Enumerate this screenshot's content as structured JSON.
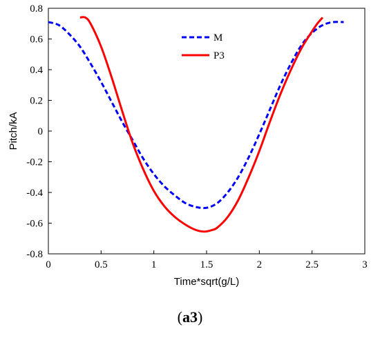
{
  "caption": {
    "open": "(",
    "label": "a3",
    "close": ")"
  },
  "chart_data": {
    "type": "line",
    "title": "",
    "xlabel": "Time*sqrt(g/L)",
    "ylabel": "Pitch/kA",
    "xlim": [
      0,
      3
    ],
    "ylim": [
      -0.8,
      0.8
    ],
    "xticks": [
      0,
      0.5,
      1,
      1.5,
      2,
      2.5,
      3
    ],
    "xtick_labels": [
      "0",
      "0.5",
      "1",
      "1.5",
      "2",
      "2.5",
      "3"
    ],
    "yticks": [
      0.8,
      0.6,
      0.4,
      0.2,
      0,
      -0.2,
      -0.4,
      -0.6,
      -0.8
    ],
    "ytick_labels": [
      "0.8",
      "0.6",
      "0.4",
      "0.2",
      "0",
      "-0.2",
      "-0.4",
      "-0.6",
      "-0.8"
    ],
    "grid": false,
    "legend": {
      "position": "top-center"
    },
    "series": [
      {
        "name": "M",
        "color": "#0000ff",
        "style": "dashed",
        "x": [
          0,
          0.1,
          0.2,
          0.3,
          0.4,
          0.5,
          0.6,
          0.7,
          0.8,
          0.9,
          1.0,
          1.1,
          1.2,
          1.3,
          1.4,
          1.5,
          1.6,
          1.7,
          1.8,
          1.9,
          2.0,
          2.1,
          2.2,
          2.3,
          2.4,
          2.5,
          2.6,
          2.7,
          2.8
        ],
        "y": [
          0.71,
          0.69,
          0.63,
          0.55,
          0.44,
          0.32,
          0.19,
          0.06,
          -0.06,
          -0.18,
          -0.28,
          -0.36,
          -0.42,
          -0.47,
          -0.495,
          -0.5,
          -0.47,
          -0.4,
          -0.3,
          -0.17,
          -0.02,
          0.14,
          0.3,
          0.44,
          0.56,
          0.64,
          0.69,
          0.71,
          0.71
        ]
      },
      {
        "name": "P3",
        "color": "#ff0000",
        "style": "solid",
        "x": [
          0.3,
          0.35,
          0.4,
          0.5,
          0.6,
          0.7,
          0.8,
          0.9,
          1.0,
          1.1,
          1.2,
          1.3,
          1.4,
          1.48,
          1.55,
          1.6,
          1.7,
          1.8,
          1.9,
          2.0,
          2.1,
          2.2,
          2.3,
          2.4,
          2.5,
          2.55,
          2.6
        ],
        "y": [
          0.74,
          0.74,
          0.7,
          0.55,
          0.35,
          0.13,
          -0.08,
          -0.25,
          -0.39,
          -0.49,
          -0.56,
          -0.61,
          -0.645,
          -0.655,
          -0.645,
          -0.63,
          -0.56,
          -0.45,
          -0.3,
          -0.13,
          0.06,
          0.24,
          0.4,
          0.54,
          0.65,
          0.7,
          0.74
        ]
      }
    ]
  }
}
